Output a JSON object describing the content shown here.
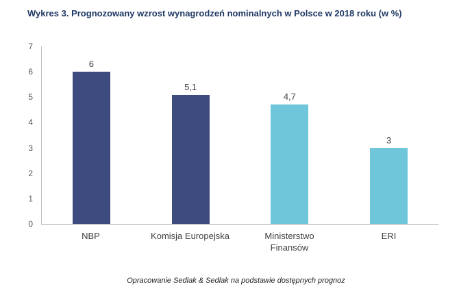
{
  "header": {
    "title": "Wykres 3. Prognozowany wzrost wynagrodzeń nominalnych w Polsce w 2018 roku (w %)"
  },
  "footer": {
    "caption": "Opracowanie Sedlak & Sedlak na podstawie dostępnych prognoz"
  },
  "colors": {
    "title_navy": "#1F3864",
    "bar_navy": "#3E4B7E",
    "bar_light_blue": "#6FC6DA",
    "axis_line": "#BFBFBF",
    "tick_text": "#595959",
    "label_text": "#404040"
  },
  "chart_data": {
    "type": "bar",
    "title": "Wykres 3. Prognozowany wzrost wynagrodzeń nominalnych w Polsce w 2018 roku (w %)",
    "categories": [
      "NBP",
      "Komisja Europejska",
      "Ministerstwo Finansów",
      "ERI"
    ],
    "values": [
      6,
      5.1,
      4.7,
      3
    ],
    "value_labels": [
      "6",
      "5,1",
      "4,7",
      "3"
    ],
    "bar_colors": [
      "#3E4B7E",
      "#3E4B7E",
      "#6FC6DA",
      "#6FC6DA"
    ],
    "xlabel": "",
    "ylabel": "",
    "ylim": [
      0,
      7
    ],
    "yticks": [
      0,
      1,
      2,
      3,
      4,
      5,
      6,
      7
    ],
    "grid": false,
    "legend": false,
    "source_note": "Opracowanie Sedlak & Sedlak na podstawie dostępnych prognoz"
  }
}
